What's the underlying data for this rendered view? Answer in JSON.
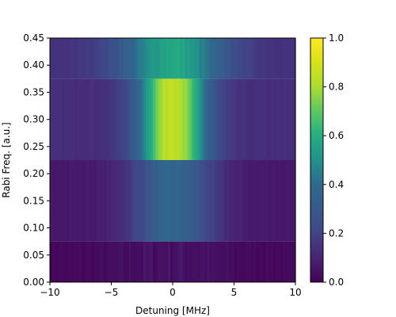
{
  "chart_data": {
    "type": "heatmap",
    "title": "",
    "xlabel": "Detuning [MHz]",
    "ylabel": "Rabi Freq. [a.u.]",
    "xlim": [
      -10,
      10
    ],
    "ylim": [
      0.0,
      0.45
    ],
    "x_ticks": [
      "−10",
      "−5",
      "0",
      "5",
      "10"
    ],
    "x_tick_values": [
      -10,
      -5,
      0,
      5,
      10
    ],
    "y_ticks": [
      "0.00",
      "0.05",
      "0.10",
      "0.15",
      "0.20",
      "0.25",
      "0.30",
      "0.35",
      "0.40",
      "0.45"
    ],
    "y_tick_values": [
      0.0,
      0.05,
      0.1,
      0.15,
      0.2,
      0.25,
      0.3,
      0.35,
      0.4,
      0.45
    ],
    "colormap": "viridis",
    "clim": [
      0.0,
      1.0
    ],
    "colorbar_ticks": [
      "0.0",
      "0.2",
      "0.4",
      "0.6",
      "0.8",
      "1.0"
    ],
    "colorbar_tick_values": [
      0.0,
      0.2,
      0.4,
      0.6,
      0.8,
      1.0
    ],
    "columns": 100,
    "bands": [
      {
        "rabi_freq_range": [
          0.0,
          0.075
        ],
        "peak_value": 0.05,
        "linewidth_mhz": 3.5,
        "floor_value": 0.02
      },
      {
        "rabi_freq_range": [
          0.075,
          0.225
        ],
        "peak_value": 0.38,
        "linewidth_mhz": 2.3,
        "floor_value": 0.07
      },
      {
        "rabi_freq_range": [
          0.225,
          0.375
        ],
        "peak_value": 0.87,
        "linewidth_mhz": 1.9,
        "floor_value": 0.13
      },
      {
        "rabi_freq_range": [
          0.375,
          0.45
        ],
        "peak_value": 0.58,
        "linewidth_mhz": 3.0,
        "floor_value": 0.14
      }
    ]
  }
}
